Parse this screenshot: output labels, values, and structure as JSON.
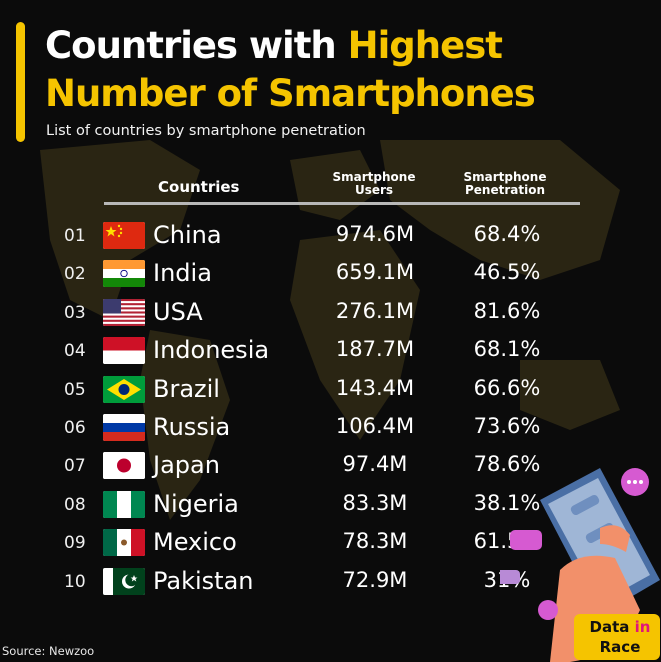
{
  "title": {
    "line1_white": "Countries with ",
    "line1_yellow": "Highest",
    "line2_yellow": "Number of Smartphones"
  },
  "subtitle": "List of countries by smartphone penetration",
  "colors": {
    "accent": "#f5c400",
    "background": "#0b0b0b",
    "map": "#2a2412"
  },
  "chart_data": {
    "type": "table",
    "columns": [
      "Countries",
      "Smartphone Users",
      "Smartphone Penetration"
    ],
    "rows": [
      {
        "rank": "01",
        "country": "China",
        "users": "974.6M",
        "penetration": "68.4%",
        "flag": "china-flag-icon"
      },
      {
        "rank": "02",
        "country": "India",
        "users": "659.1M",
        "penetration": "46.5%",
        "flag": "india-flag-icon"
      },
      {
        "rank": "03",
        "country": "USA",
        "users": "276.1M",
        "penetration": "81.6%",
        "flag": "usa-flag-icon"
      },
      {
        "rank": "04",
        "country": "Indonesia",
        "users": "187.7M",
        "penetration": "68.1%",
        "flag": "indonesia-flag-icon"
      },
      {
        "rank": "05",
        "country": "Brazil",
        "users": "143.4M",
        "penetration": "66.6%",
        "flag": "brazil-flag-icon"
      },
      {
        "rank": "06",
        "country": "Russia",
        "users": "106.4M",
        "penetration": "73.6%",
        "flag": "russia-flag-icon"
      },
      {
        "rank": "07",
        "country": "Japan",
        "users": "97.4M",
        "penetration": "78.6%",
        "flag": "japan-flag-icon"
      },
      {
        "rank": "08",
        "country": "Nigeria",
        "users": "83.3M",
        "penetration": "38.1%",
        "flag": "nigeria-flag-icon"
      },
      {
        "rank": "09",
        "country": "Mexico",
        "users": "78.3M",
        "penetration": "61.5%",
        "flag": "mexico-flag-icon"
      },
      {
        "rank": "10",
        "country": "Pakistan",
        "users": "72.9M",
        "penetration": "31%",
        "flag": "pakistan-flag-icon"
      }
    ]
  },
  "header": {
    "countries": "Countries",
    "users_line1": "Smartphone",
    "users_line2": "Users",
    "pen_line1": "Smartphone",
    "pen_line2": "Penetration"
  },
  "source": "Source: Newzoo",
  "logo": {
    "word1_dark": "Data",
    "word1_pink": "in",
    "word2_dark": "Race"
  }
}
